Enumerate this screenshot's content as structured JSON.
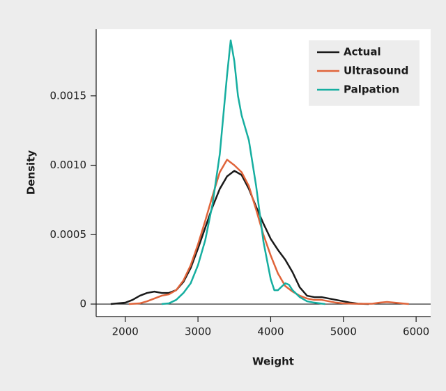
{
  "chart_data": {
    "type": "line",
    "xlabel": "Weight",
    "ylabel": "Density",
    "xlim": [
      1600,
      6200
    ],
    "ylim": [
      -9e-05,
      0.00198
    ],
    "xticks": [
      2000,
      3000,
      4000,
      5000,
      6000
    ],
    "yticks": [
      0,
      0.0005,
      {
        "value": 0.001,
        "label": "0.0010"
      },
      0.0015
    ],
    "zero_line": true,
    "legend": "upper right",
    "series": [
      {
        "name": "Actual",
        "color": "#1a1a1a",
        "x": [
          1800,
          2000,
          2100,
          2200,
          2300,
          2400,
          2500,
          2600,
          2700,
          2800,
          2900,
          3000,
          3100,
          3200,
          3300,
          3400,
          3500,
          3600,
          3700,
          3800,
          3900,
          4000,
          4100,
          4200,
          4300,
          4400,
          4500,
          4600,
          4700,
          4800,
          4900,
          5000,
          5100,
          5200,
          5350
        ],
        "values": [
          0,
          1e-05,
          3e-05,
          6e-05,
          8e-05,
          9e-05,
          8e-05,
          8e-05,
          0.0001,
          0.00016,
          0.00026,
          0.0004,
          0.00055,
          0.0007,
          0.00083,
          0.00092,
          0.00096,
          0.00093,
          0.00083,
          0.0007,
          0.00058,
          0.00047,
          0.00039,
          0.00032,
          0.00023,
          0.00012,
          6e-05,
          5e-05,
          5e-05,
          4e-05,
          3e-05,
          2e-05,
          1e-05,
          3e-06,
          0
        ]
      },
      {
        "name": "Ultrasound",
        "color": "#e0643a",
        "x": [
          2050,
          2200,
          2300,
          2400,
          2500,
          2600,
          2700,
          2800,
          2900,
          3000,
          3100,
          3200,
          3300,
          3400,
          3500,
          3600,
          3700,
          3800,
          3900,
          4000,
          4100,
          4200,
          4300,
          4400,
          4500,
          4600,
          4700,
          4800,
          4900,
          5000,
          5200,
          5400,
          5500,
          5600,
          5700,
          5900
        ],
        "values": [
          0,
          5e-06,
          2e-05,
          4e-05,
          6e-05,
          7e-05,
          0.0001,
          0.00017,
          0.00028,
          0.00043,
          0.0006,
          0.00078,
          0.00095,
          0.00104,
          0.001,
          0.00095,
          0.00085,
          0.00068,
          0.0005,
          0.00035,
          0.00022,
          0.00013,
          9e-05,
          6e-05,
          4e-05,
          3e-05,
          3e-05,
          2e-05,
          1e-05,
          5e-06,
          2e-06,
          3e-06,
          1e-05,
          1.5e-05,
          1e-05,
          0
        ]
      },
      {
        "name": "Palpation",
        "color": "#16aea0",
        "x": [
          2500,
          2600,
          2700,
          2800,
          2900,
          3000,
          3100,
          3200,
          3300,
          3400,
          3450,
          3500,
          3550,
          3600,
          3700,
          3800,
          3900,
          4000,
          4050,
          4100,
          4200,
          4250,
          4300,
          4400,
          4500,
          4600,
          4750
        ],
        "values": [
          0,
          5e-06,
          3e-05,
          8e-05,
          0.00015,
          0.00028,
          0.00046,
          0.00072,
          0.00108,
          0.00165,
          0.0019,
          0.00175,
          0.0015,
          0.00136,
          0.00118,
          0.00085,
          0.00045,
          0.00018,
          0.0001,
          0.0001,
          0.00015,
          0.00014,
          0.0001,
          5e-05,
          2e-05,
          1e-05,
          0
        ]
      }
    ]
  }
}
